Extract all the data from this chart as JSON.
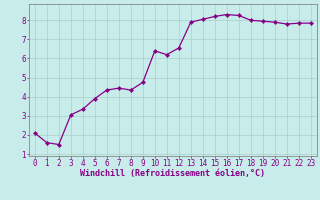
{
  "x": [
    0,
    1,
    2,
    3,
    4,
    5,
    6,
    7,
    8,
    9,
    10,
    11,
    12,
    13,
    14,
    15,
    16,
    17,
    18,
    19,
    20,
    21,
    22,
    23
  ],
  "y": [
    2.1,
    1.6,
    1.5,
    3.05,
    3.35,
    3.9,
    4.35,
    4.45,
    4.35,
    4.75,
    6.4,
    6.2,
    6.55,
    7.9,
    8.05,
    8.2,
    8.3,
    8.25,
    8.0,
    7.95,
    7.9,
    7.8,
    7.85,
    7.85
  ],
  "line_color": "#880088",
  "marker": "D",
  "marker_size": 2.2,
  "linewidth": 0.9,
  "bg_color": "#c8ecea",
  "grid_color": "#aacfcd",
  "tick_color": "#880088",
  "label_color": "#880088",
  "xlabel": "Windchill (Refroidissement éolien,°C)",
  "ylabel": "",
  "xlim": [
    -0.5,
    23.5
  ],
  "ylim": [
    0.9,
    8.85
  ],
  "yticks": [
    1,
    2,
    3,
    4,
    5,
    6,
    7,
    8
  ],
  "xticks": [
    0,
    1,
    2,
    3,
    4,
    5,
    6,
    7,
    8,
    9,
    10,
    11,
    12,
    13,
    14,
    15,
    16,
    17,
    18,
    19,
    20,
    21,
    22,
    23
  ],
  "xlabel_fontsize": 6.0,
  "tick_fontsize": 5.5,
  "spine_color": "#888888"
}
